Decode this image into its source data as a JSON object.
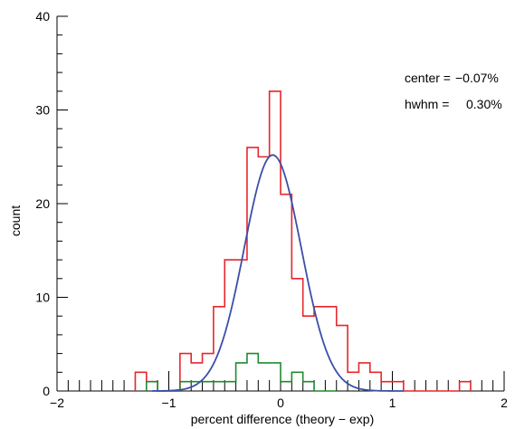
{
  "chart_data": {
    "type": "histogram",
    "xlabel": "percent difference (theory − exp)",
    "ylabel": "count",
    "xlim": [
      -2,
      2
    ],
    "ylim": [
      0,
      40
    ],
    "x_ticks": [
      -2,
      -1,
      0,
      1,
      2
    ],
    "x_tick_labels": [
      "−2",
      "−1",
      "0",
      "1",
      "2"
    ],
    "y_ticks": [
      0,
      10,
      20,
      30,
      40
    ],
    "y_tick_labels": [
      "0",
      "10",
      "20",
      "30",
      "40"
    ],
    "x_minor_step": 0.1,
    "y_minor_step": 2,
    "grid": false,
    "annotations": [
      {
        "label": "center =",
        "value": "−0.07%"
      },
      {
        "label": "hwhm =",
        "value": "0.30%"
      }
    ],
    "series": [
      {
        "kind": "histogram",
        "color": "#e8262b",
        "bin_edges": [
          -1.3,
          -1.2,
          -1.1,
          -1.0,
          -0.9,
          -0.8,
          -0.7,
          -0.6,
          -0.5,
          -0.4,
          -0.3,
          -0.2,
          -0.1,
          0.0,
          0.1,
          0.2,
          0.3,
          0.4,
          0.5,
          0.6,
          0.7,
          0.8,
          0.9,
          1.0,
          1.1,
          1.2,
          1.3,
          1.4,
          1.5,
          1.6,
          1.7
        ],
        "counts": [
          2,
          1,
          0,
          0,
          4,
          3,
          4,
          9,
          14,
          14,
          26,
          25,
          32,
          21,
          12,
          8,
          9,
          9,
          7,
          2,
          3,
          2,
          1,
          1,
          0,
          0,
          0,
          0,
          0,
          1
        ]
      },
      {
        "kind": "histogram",
        "color": "#1f8a2e",
        "bin_edges": [
          -1.2,
          -1.1,
          -1.0,
          -0.9,
          -0.8,
          -0.7,
          -0.6,
          -0.5,
          -0.4,
          -0.3,
          -0.2,
          -0.1,
          0.0,
          0.1,
          0.2,
          0.3,
          0.4,
          0.5
        ],
        "counts": [
          1,
          0,
          0,
          1,
          1,
          1,
          1,
          1,
          3,
          4,
          3,
          3,
          1,
          2,
          1,
          0,
          0
        ]
      },
      {
        "kind": "gaussian_fit",
        "color": "#3b4fa8",
        "center": -0.07,
        "hwhm": 0.3,
        "amplitude": 25.2,
        "x_range": [
          -1.15,
          1.1
        ]
      }
    ]
  }
}
